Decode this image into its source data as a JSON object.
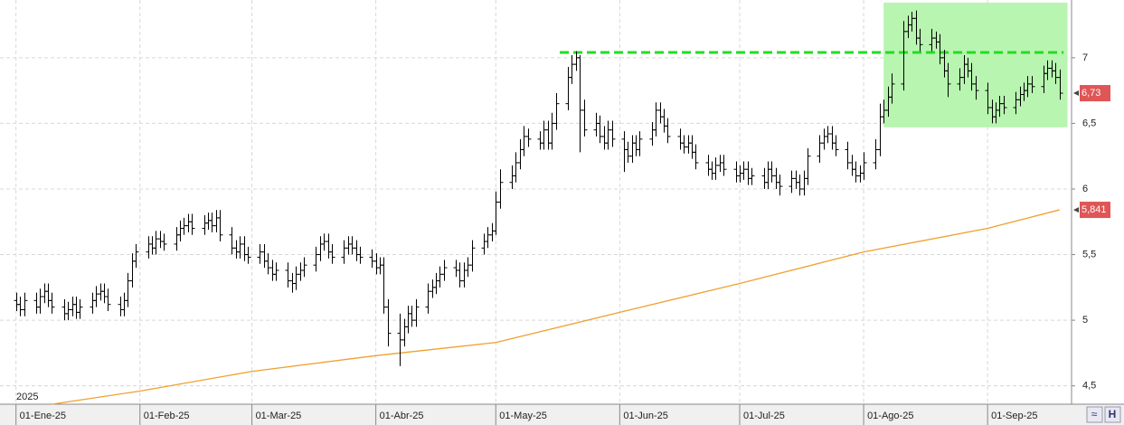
{
  "chart_data": {
    "type": "ohlc",
    "color": "#000000",
    "xlim": [
      "2024-12-28",
      "2025-09-22"
    ],
    "xticks": [
      {
        "value": "2025-01-01",
        "label": "01-Ene-25"
      },
      {
        "value": "2025-02-01",
        "label": "01-Feb-25"
      },
      {
        "value": "2025-03-01",
        "label": "01-Mar-25"
      },
      {
        "value": "2025-04-01",
        "label": "01-Abr-25"
      },
      {
        "value": "2025-05-01",
        "label": "01-May-25"
      },
      {
        "value": "2025-06-01",
        "label": "01-Jun-25"
      },
      {
        "value": "2025-07-01",
        "label": "01-Jul-25"
      },
      {
        "value": "2025-08-01",
        "label": "01-Ago-25"
      },
      {
        "value": "2025-09-01",
        "label": "01-Sep-25"
      }
    ],
    "year_label": "2025",
    "ylim": [
      4.36,
      7.44
    ],
    "yticks": [
      {
        "value": 4.5,
        "label": "4,5"
      },
      5,
      {
        "value": 5.5,
        "label": "5,5"
      },
      6,
      {
        "value": 6.5,
        "label": "6,5"
      },
      7
    ],
    "grid": true,
    "x": [
      "2025-01-01",
      "2025-01-02",
      "2025-01-03",
      "2025-01-06",
      "2025-01-07",
      "2025-01-08",
      "2025-01-09",
      "2025-01-10",
      "2025-01-13",
      "2025-01-14",
      "2025-01-15",
      "2025-01-16",
      "2025-01-17",
      "2025-01-20",
      "2025-01-21",
      "2025-01-22",
      "2025-01-23",
      "2025-01-24",
      "2025-01-27",
      "2025-01-28",
      "2025-01-29",
      "2025-01-30",
      "2025-01-31",
      "2025-02-03",
      "2025-02-04",
      "2025-02-05",
      "2025-02-06",
      "2025-02-07",
      "2025-02-10",
      "2025-02-11",
      "2025-02-12",
      "2025-02-13",
      "2025-02-14",
      "2025-02-17",
      "2025-02-18",
      "2025-02-19",
      "2025-02-20",
      "2025-02-21",
      "2025-02-24",
      "2025-02-25",
      "2025-02-26",
      "2025-02-27",
      "2025-02-28",
      "2025-03-03",
      "2025-03-04",
      "2025-03-05",
      "2025-03-06",
      "2025-03-07",
      "2025-03-10",
      "2025-03-11",
      "2025-03-12",
      "2025-03-13",
      "2025-03-14",
      "2025-03-17",
      "2025-03-18",
      "2025-03-19",
      "2025-03-20",
      "2025-03-21",
      "2025-03-24",
      "2025-03-25",
      "2025-03-26",
      "2025-03-27",
      "2025-03-28",
      "2025-03-31",
      "2025-04-01",
      "2025-04-02",
      "2025-04-03",
      "2025-04-04",
      "2025-04-07",
      "2025-04-08",
      "2025-04-09",
      "2025-04-10",
      "2025-04-11",
      "2025-04-14",
      "2025-04-15",
      "2025-04-16",
      "2025-04-17",
      "2025-04-18",
      "2025-04-21",
      "2025-04-22",
      "2025-04-23",
      "2025-04-24",
      "2025-04-25",
      "2025-04-28",
      "2025-04-29",
      "2025-04-30",
      "2025-05-01",
      "2025-05-02",
      "2025-05-05",
      "2025-05-06",
      "2025-05-07",
      "2025-05-08",
      "2025-05-09",
      "2025-05-12",
      "2025-05-13",
      "2025-05-14",
      "2025-05-15",
      "2025-05-16",
      "2025-05-19",
      "2025-05-20",
      "2025-05-21",
      "2025-05-22",
      "2025-05-23",
      "2025-05-26",
      "2025-05-27",
      "2025-05-28",
      "2025-05-29",
      "2025-05-30",
      "2025-06-02",
      "2025-06-03",
      "2025-06-04",
      "2025-06-05",
      "2025-06-06",
      "2025-06-09",
      "2025-06-10",
      "2025-06-11",
      "2025-06-12",
      "2025-06-13",
      "2025-06-16",
      "2025-06-17",
      "2025-06-18",
      "2025-06-19",
      "2025-06-20",
      "2025-06-23",
      "2025-06-24",
      "2025-06-25",
      "2025-06-26",
      "2025-06-27",
      "2025-06-30",
      "2025-07-01",
      "2025-07-02",
      "2025-07-03",
      "2025-07-04",
      "2025-07-07",
      "2025-07-08",
      "2025-07-09",
      "2025-07-10",
      "2025-07-11",
      "2025-07-14",
      "2025-07-15",
      "2025-07-16",
      "2025-07-17",
      "2025-07-18",
      "2025-07-21",
      "2025-07-22",
      "2025-07-23",
      "2025-07-24",
      "2025-07-25",
      "2025-07-28",
      "2025-07-29",
      "2025-07-30",
      "2025-07-31",
      "2025-08-01",
      "2025-08-04",
      "2025-08-05",
      "2025-08-06",
      "2025-08-07",
      "2025-08-08",
      "2025-08-11",
      "2025-08-12",
      "2025-08-13",
      "2025-08-14",
      "2025-08-15",
      "2025-08-18",
      "2025-08-19",
      "2025-08-20",
      "2025-08-21",
      "2025-08-22",
      "2025-08-25",
      "2025-08-26",
      "2025-08-27",
      "2025-08-28",
      "2025-08-29",
      "2025-09-01",
      "2025-09-02",
      "2025-09-03",
      "2025-09-04",
      "2025-09-05",
      "2025-09-08",
      "2025-09-09",
      "2025-09-10",
      "2025-09-11",
      "2025-09-12",
      "2025-09-15",
      "2025-09-16",
      "2025-09-17",
      "2025-09-18",
      "2025-09-19"
    ],
    "open": [
      5.15,
      5.12,
      5.08,
      5.15,
      5.1,
      5.18,
      5.22,
      5.15,
      5.1,
      5.05,
      5.08,
      5.12,
      5.06,
      5.1,
      5.15,
      5.2,
      5.22,
      5.18,
      5.12,
      5.08,
      5.15,
      5.3,
      5.45,
      5.52,
      5.58,
      5.55,
      5.62,
      5.6,
      5.58,
      5.65,
      5.7,
      5.72,
      5.75,
      5.7,
      5.74,
      5.76,
      5.72,
      5.78,
      5.65,
      5.55,
      5.52,
      5.58,
      5.5,
      5.48,
      5.52,
      5.45,
      5.4,
      5.35,
      5.38,
      5.3,
      5.28,
      5.35,
      5.38,
      5.42,
      5.5,
      5.58,
      5.6,
      5.52,
      5.48,
      5.55,
      5.58,
      5.55,
      5.5,
      5.48,
      5.45,
      5.4,
      5.42,
      5.1,
      4.9,
      4.85,
      4.95,
      5.05,
      5.0,
      5.1,
      5.22,
      5.25,
      5.3,
      5.35,
      5.4,
      5.38,
      5.3,
      5.38,
      5.42,
      5.55,
      5.6,
      5.65,
      5.68,
      5.9,
      6.05,
      6.1,
      6.2,
      6.3,
      6.4,
      6.38,
      6.35,
      6.45,
      6.35,
      6.5,
      6.65,
      6.85,
      6.95,
      7.0,
      6.6,
      6.45,
      6.5,
      6.4,
      6.35,
      6.45,
      6.38,
      6.3,
      6.25,
      6.35,
      6.3,
      6.38,
      6.45,
      6.6,
      6.55,
      6.48,
      6.4,
      6.35,
      6.32,
      6.35,
      6.28,
      6.2,
      6.15,
      6.12,
      6.18,
      6.2,
      6.15,
      6.1,
      6.12,
      6.15,
      6.08,
      6.1,
      6.05,
      6.15,
      6.1,
      6.05,
      6.02,
      6.08,
      6.05,
      6.0,
      6.08,
      6.25,
      6.35,
      6.4,
      6.42,
      6.35,
      6.3,
      6.2,
      6.15,
      6.1,
      6.12,
      6.2,
      6.3,
      6.55,
      6.6,
      6.7,
      6.8,
      7.2,
      7.25,
      7.3,
      7.15,
      7.1,
      7.15,
      7.12,
      7.0,
      6.9,
      6.8,
      6.85,
      6.95,
      6.9,
      6.8,
      6.75,
      6.62,
      6.55,
      6.6,
      6.65,
      6.62,
      6.68,
      6.72,
      6.75,
      6.8,
      6.78,
      6.88,
      6.92,
      6.9,
      6.85
    ],
    "high": [
      5.21,
      5.18,
      5.21,
      5.21,
      5.24,
      5.28,
      5.28,
      5.21,
      5.16,
      5.14,
      5.18,
      5.18,
      5.16,
      5.21,
      5.26,
      5.28,
      5.28,
      5.24,
      5.18,
      5.21,
      5.36,
      5.51,
      5.58,
      5.64,
      5.64,
      5.68,
      5.68,
      5.66,
      5.71,
      5.76,
      5.78,
      5.81,
      5.81,
      5.8,
      5.82,
      5.82,
      5.84,
      5.84,
      5.71,
      5.61,
      5.64,
      5.64,
      5.56,
      5.58,
      5.58,
      5.51,
      5.46,
      5.44,
      5.44,
      5.36,
      5.41,
      5.44,
      5.48,
      5.56,
      5.64,
      5.66,
      5.66,
      5.58,
      5.61,
      5.64,
      5.64,
      5.61,
      5.56,
      5.54,
      5.51,
      5.48,
      5.48,
      5.16,
      5.05,
      5.01,
      5.11,
      5.11,
      5.16,
      5.28,
      5.31,
      5.36,
      5.41,
      5.46,
      5.46,
      5.44,
      5.44,
      5.48,
      5.61,
      5.66,
      5.71,
      5.74,
      5.98,
      6.15,
      6.18,
      6.28,
      6.38,
      6.48,
      6.46,
      6.44,
      6.52,
      6.52,
      6.58,
      6.73,
      6.93,
      7.02,
      7.05,
      7.02,
      6.68,
      6.58,
      6.56,
      6.48,
      6.52,
      6.52,
      6.44,
      6.36,
      6.41,
      6.41,
      6.44,
      6.51,
      6.66,
      6.66,
      6.61,
      6.54,
      6.46,
      6.41,
      6.41,
      6.41,
      6.34,
      6.26,
      6.21,
      6.24,
      6.26,
      6.26,
      6.21,
      6.18,
      6.21,
      6.21,
      6.16,
      6.16,
      6.21,
      6.21,
      6.16,
      6.11,
      6.14,
      6.14,
      6.11,
      6.14,
      6.31,
      6.41,
      6.46,
      6.48,
      6.48,
      6.41,
      6.36,
      6.26,
      6.21,
      6.18,
      6.28,
      6.38,
      6.65,
      6.68,
      6.78,
      6.88,
      7.28,
      7.32,
      7.35,
      7.36,
      7.22,
      7.22,
      7.2,
      7.18,
      7.06,
      6.96,
      6.92,
      7.02,
      7.0,
      6.96,
      6.86,
      6.81,
      6.68,
      6.66,
      6.71,
      6.71,
      6.74,
      6.78,
      6.81,
      6.86,
      6.86,
      6.94,
      6.98,
      6.98,
      6.96,
      6.91
    ],
    "low": [
      5.07,
      5.03,
      5.03,
      5.05,
      5.05,
      5.13,
      5.1,
      5.05,
      5.0,
      5.0,
      5.03,
      5.01,
      5.01,
      5.05,
      5.1,
      5.15,
      5.13,
      5.07,
      5.03,
      5.03,
      5.1,
      5.25,
      5.4,
      5.47,
      5.5,
      5.5,
      5.55,
      5.53,
      5.53,
      5.6,
      5.65,
      5.67,
      5.65,
      5.65,
      5.69,
      5.67,
      5.67,
      5.6,
      5.5,
      5.47,
      5.47,
      5.45,
      5.43,
      5.43,
      5.4,
      5.35,
      5.3,
      5.3,
      5.25,
      5.21,
      5.23,
      5.3,
      5.33,
      5.37,
      5.45,
      5.53,
      5.47,
      5.43,
      5.43,
      5.5,
      5.5,
      5.45,
      5.43,
      5.4,
      5.35,
      5.35,
      5.05,
      4.8,
      4.65,
      4.8,
      4.9,
      4.95,
      4.95,
      5.05,
      5.17,
      5.2,
      5.25,
      5.3,
      5.33,
      5.25,
      5.25,
      5.33,
      5.37,
      5.5,
      5.55,
      5.6,
      5.65,
      5.85,
      6.0,
      6.05,
      6.15,
      6.25,
      6.32,
      6.3,
      6.3,
      6.3,
      6.3,
      6.45,
      6.6,
      6.8,
      6.9,
      6.28,
      6.4,
      6.4,
      6.35,
      6.3,
      6.3,
      6.32,
      6.13,
      6.2,
      6.2,
      6.25,
      6.25,
      6.33,
      6.4,
      6.5,
      6.43,
      6.35,
      6.3,
      6.27,
      6.27,
      6.23,
      6.15,
      6.1,
      6.07,
      6.07,
      6.13,
      6.1,
      6.05,
      6.05,
      6.07,
      6.03,
      6.03,
      6.0,
      6.0,
      6.05,
      6.0,
      5.95,
      5.97,
      6.0,
      5.95,
      5.95,
      6.03,
      6.2,
      6.3,
      6.35,
      6.3,
      6.25,
      6.15,
      6.1,
      6.05,
      6.05,
      6.07,
      6.15,
      6.25,
      6.5,
      6.55,
      6.65,
      6.75,
      7.15,
      7.2,
      7.1,
      7.05,
      7.05,
      7.07,
      6.95,
      6.85,
      6.7,
      6.75,
      6.8,
      6.85,
      6.75,
      6.68,
      6.57,
      6.5,
      6.5,
      6.55,
      6.57,
      6.57,
      6.63,
      6.67,
      6.7,
      6.73,
      6.73,
      6.83,
      6.85,
      6.8,
      6.68
    ],
    "close": [
      5.12,
      5.08,
      5.15,
      5.1,
      5.18,
      5.22,
      5.15,
      5.1,
      5.05,
      5.08,
      5.12,
      5.06,
      5.1,
      5.15,
      5.2,
      5.22,
      5.18,
      5.12,
      5.08,
      5.15,
      5.3,
      5.45,
      5.52,
      5.58,
      5.55,
      5.62,
      5.6,
      5.58,
      5.65,
      5.7,
      5.72,
      5.75,
      5.7,
      5.74,
      5.76,
      5.72,
      5.78,
      5.65,
      5.55,
      5.52,
      5.58,
      5.5,
      5.48,
      5.52,
      5.45,
      5.4,
      5.35,
      5.38,
      5.3,
      5.28,
      5.35,
      5.38,
      5.42,
      5.5,
      5.58,
      5.6,
      5.52,
      5.48,
      5.55,
      5.58,
      5.55,
      5.5,
      5.48,
      5.45,
      5.4,
      5.42,
      5.1,
      4.9,
      4.85,
      4.95,
      5.05,
      5.0,
      5.1,
      5.22,
      5.25,
      5.3,
      5.35,
      5.4,
      5.38,
      5.3,
      5.38,
      5.42,
      5.55,
      5.6,
      5.65,
      5.68,
      5.9,
      6.05,
      6.1,
      6.2,
      6.3,
      6.4,
      6.38,
      6.35,
      6.45,
      6.35,
      6.5,
      6.65,
      6.85,
      6.95,
      7.0,
      6.6,
      6.45,
      6.5,
      6.4,
      6.35,
      6.45,
      6.38,
      6.3,
      6.25,
      6.35,
      6.3,
      6.38,
      6.45,
      6.6,
      6.55,
      6.48,
      6.4,
      6.35,
      6.32,
      6.35,
      6.28,
      6.2,
      6.15,
      6.12,
      6.18,
      6.2,
      6.15,
      6.1,
      6.12,
      6.15,
      6.08,
      6.1,
      6.05,
      6.15,
      6.1,
      6.05,
      6.02,
      6.08,
      6.05,
      6.0,
      6.08,
      6.25,
      6.35,
      6.4,
      6.42,
      6.35,
      6.3,
      6.2,
      6.15,
      6.1,
      6.12,
      6.2,
      6.3,
      6.55,
      6.6,
      6.7,
      6.8,
      7.2,
      7.25,
      7.3,
      7.15,
      7.1,
      7.15,
      7.12,
      7.0,
      6.9,
      6.8,
      6.85,
      6.95,
      6.9,
      6.8,
      6.75,
      6.62,
      6.55,
      6.6,
      6.65,
      6.62,
      6.68,
      6.72,
      6.75,
      6.8,
      6.78,
      6.88,
      6.92,
      6.9,
      6.85,
      6.73
    ],
    "last_label": "6,73",
    "last_label_color": "#e05555",
    "lines": [
      {
        "color": "#f0a030",
        "x": [
          "2025-01-10",
          "2025-02-01",
          "2025-03-01",
          "2025-04-01",
          "2025-05-01",
          "2025-06-01",
          "2025-07-01",
          "2025-08-01",
          "2025-09-01",
          "2025-09-19"
        ],
        "values": [
          4.36,
          4.46,
          4.61,
          4.73,
          4.83,
          5.06,
          5.28,
          5.52,
          5.7,
          5.841
        ],
        "last_label": "5,841",
        "last_label_color": "#e05555"
      }
    ],
    "resistance": {
      "x": [
        "2025-05-17",
        "2025-09-20"
      ],
      "value": 7.04,
      "color": "#22dd22"
    },
    "highlight": {
      "x": [
        "2025-08-06",
        "2025-09-21"
      ],
      "ylim": [
        6.47,
        7.42
      ],
      "color": "#b8f5b0"
    }
  }
}
